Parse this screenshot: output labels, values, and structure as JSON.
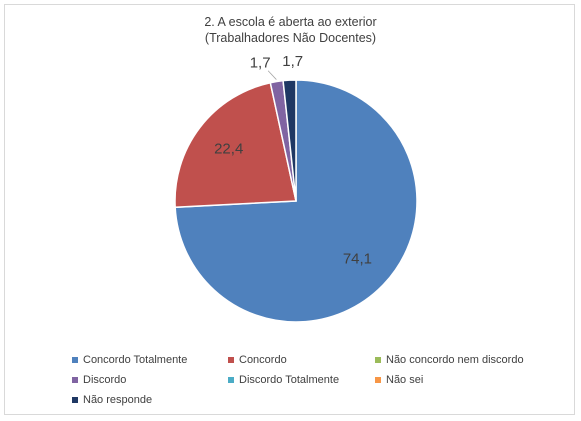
{
  "chart_data": {
    "type": "pie",
    "title_line1": "2. A escola é aberta ao exterior",
    "title_line2": "(Trabalhadores Não Docentes)",
    "categories": [
      "Concordo Totalmente",
      "Concordo",
      "Não concordo nem discordo",
      "Discordo",
      "Discordo Totalmente",
      "Não sei",
      "Não responde"
    ],
    "values": [
      74.1,
      22.4,
      0,
      1.7,
      0,
      0,
      1.7
    ],
    "labels": [
      "74,1",
      "22,4",
      "",
      "1,7",
      "",
      "",
      "1,7"
    ],
    "colors": [
      "#4f81bd",
      "#c0504d",
      "#9bbb59",
      "#8064a2",
      "#4bacc6",
      "#f79646",
      "#1f3864"
    ],
    "legend_position": "bottom"
  }
}
